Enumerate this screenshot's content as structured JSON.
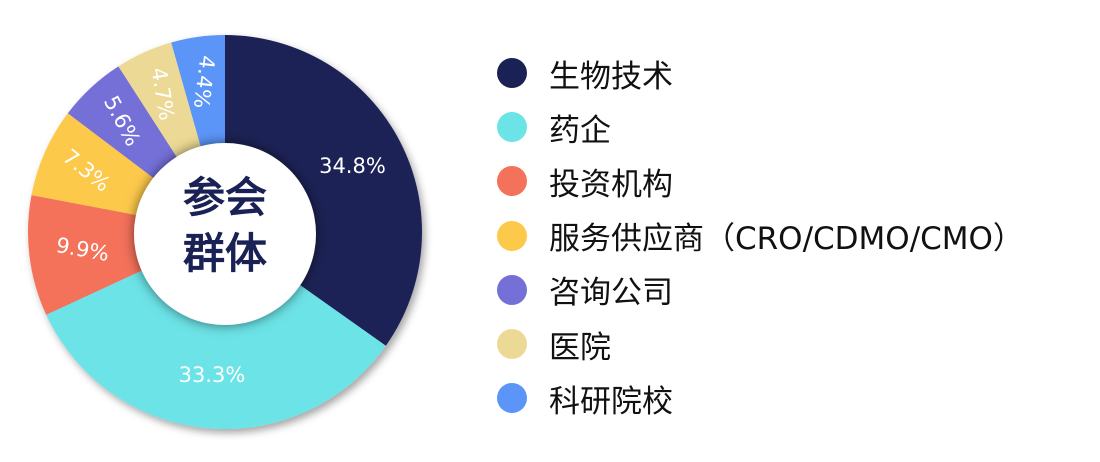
{
  "chart_data": {
    "type": "pie",
    "donut": true,
    "center_label": [
      "参会",
      "群体"
    ],
    "categories": [
      "生物技术",
      "药企",
      "投资机构",
      "服务供应商（CRO/CDMO/CMO）",
      "咨询公司",
      "医院",
      "科研院校"
    ],
    "values": [
      34.8,
      33.3,
      9.9,
      7.3,
      5.6,
      4.7,
      4.4
    ],
    "labels": [
      "34.8%",
      "33.3%",
      "9.9%",
      "7.3%",
      "5.6%",
      "4.7%",
      "4.4%"
    ],
    "colors": [
      "#1a2155",
      "#6ce3e7",
      "#f4715a",
      "#fcc94b",
      "#7470d8",
      "#ebd995",
      "#5b95f8"
    ],
    "legend_position": "right",
    "start": "top-clockwise"
  }
}
